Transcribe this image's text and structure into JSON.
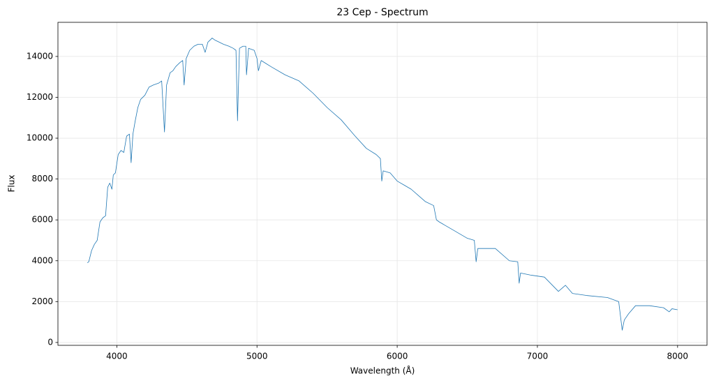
{
  "chart_data": {
    "type": "line",
    "title": "23 Cep - Spectrum",
    "xlabel": "Wavelength (Å)",
    "ylabel": "Flux",
    "x": [
      3790,
      3800,
      3820,
      3840,
      3860,
      3880,
      3900,
      3920,
      3935,
      3950,
      3965,
      3975,
      3990,
      4010,
      4030,
      4050,
      4070,
      4090,
      4102,
      4115,
      4130,
      4150,
      4170,
      4200,
      4230,
      4260,
      4300,
      4320,
      4340,
      4355,
      4380,
      4400,
      4420,
      4450,
      4470,
      4480,
      4495,
      4520,
      4550,
      4580,
      4610,
      4630,
      4650,
      4680,
      4700,
      4730,
      4760,
      4800,
      4830,
      4850,
      4861,
      4875,
      4900,
      4920,
      4925,
      4940,
      4980,
      5000,
      5010,
      5030,
      5100,
      5200,
      5300,
      5400,
      5500,
      5600,
      5700,
      5780,
      5850,
      5880,
      5890,
      5900,
      5950,
      6000,
      6050,
      6100,
      6150,
      6200,
      6260,
      6280,
      6300,
      6400,
      6500,
      6550,
      6563,
      6575,
      6650,
      6700,
      6800,
      6860,
      6870,
      6880,
      6950,
      7050,
      7150,
      7200,
      7250,
      7350,
      7500,
      7580,
      7605,
      7620,
      7650,
      7700,
      7800,
      7900,
      7940,
      7960,
      8000
    ],
    "values": [
      3900,
      3950,
      4500,
      4800,
      5000,
      5900,
      6100,
      6200,
      7600,
      7800,
      7500,
      8200,
      8300,
      9200,
      9400,
      9300,
      10100,
      10200,
      8800,
      10200,
      10800,
      11500,
      11900,
      12100,
      12500,
      12600,
      12700,
      12800,
      10300,
      12600,
      13200,
      13300,
      13500,
      13700,
      13800,
      12600,
      13900,
      14300,
      14500,
      14600,
      14600,
      14200,
      14700,
      14900,
      14800,
      14700,
      14600,
      14500,
      14400,
      14300,
      10850,
      14400,
      14500,
      14500,
      13100,
      14400,
      14300,
      13900,
      13300,
      13800,
      13500,
      13100,
      12800,
      12200,
      11500,
      10900,
      10100,
      9500,
      9200,
      9000,
      7900,
      8400,
      8300,
      7900,
      7700,
      7500,
      7200,
      6900,
      6700,
      6000,
      5900,
      5500,
      5100,
      5000,
      3950,
      4600,
      4600,
      4600,
      4000,
      3950,
      2900,
      3400,
      3300,
      3200,
      2500,
      2800,
      2400,
      2300,
      2200,
      2000,
      600,
      1100,
      1400,
      1800,
      1800,
      1700,
      1500,
      1650,
      1600
    ],
    "color": "#1f77b4",
    "xlim": [
      3580,
      8210
    ],
    "xticks": [
      4000,
      5000,
      6000,
      7000,
      8000
    ],
    "ylim": [
      -140,
      15670
    ],
    "yticks": [
      0,
      2000,
      4000,
      6000,
      8000,
      10000,
      12000,
      14000
    ],
    "grid": true
  }
}
